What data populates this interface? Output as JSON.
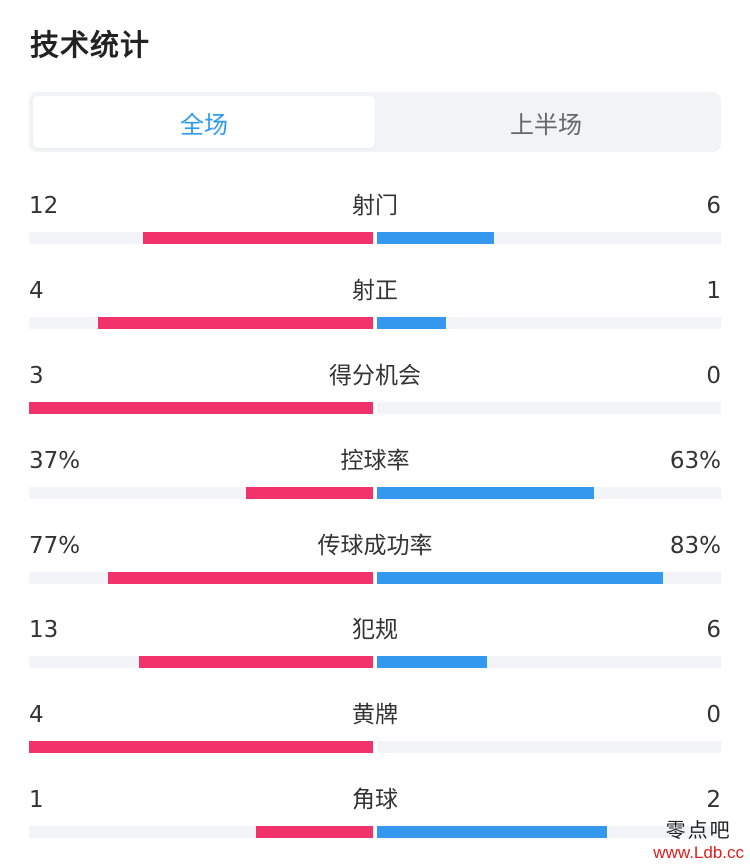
{
  "title": "技术统计",
  "tabs": [
    {
      "label": "全场",
      "active": true
    },
    {
      "label": "上半场",
      "active": false
    }
  ],
  "colors": {
    "home": "#f2336b",
    "away": "#3499ee",
    "active_tab": "#2d9cf0",
    "track": "#f3f4f7"
  },
  "stats": [
    {
      "label": "射门",
      "left": "12",
      "right": "6",
      "left_fill": 0.67,
      "right_fill": 0.34
    },
    {
      "label": "射正",
      "left": "4",
      "right": "1",
      "left_fill": 0.8,
      "right_fill": 0.2
    },
    {
      "label": "得分机会",
      "left": "3",
      "right": "0",
      "left_fill": 1.0,
      "right_fill": 0.0
    },
    {
      "label": "控球率",
      "left": "37%",
      "right": "63%",
      "left_fill": 0.37,
      "right_fill": 0.63
    },
    {
      "label": "传球成功率",
      "left": "77%",
      "right": "83%",
      "left_fill": 0.77,
      "right_fill": 0.83
    },
    {
      "label": "犯规",
      "left": "13",
      "right": "6",
      "left_fill": 0.68,
      "right_fill": 0.32
    },
    {
      "label": "黄牌",
      "left": "4",
      "right": "0",
      "left_fill": 1.0,
      "right_fill": 0.0
    },
    {
      "label": "角球",
      "left": "1",
      "right": "2",
      "left_fill": 0.34,
      "right_fill": 0.67
    }
  ],
  "watermark": {
    "name": "零点吧",
    "url": "www.Ldb.cc"
  }
}
